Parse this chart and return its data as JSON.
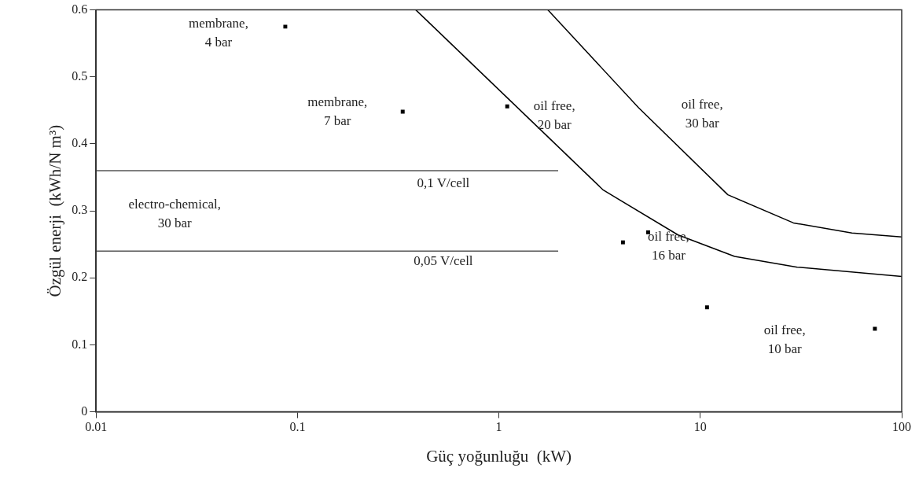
{
  "chart_data": {
    "type": "scatter",
    "xlabel": "Güç yoğunluğu  (kW)",
    "ylabel": "Özgül enerji  (kWh/N m³)",
    "log": "x",
    "xlim": [
      0.01,
      100
    ],
    "xticks": [
      0.01,
      0.1,
      1,
      10,
      100
    ],
    "ylim": [
      0,
      0.6
    ],
    "yticks": [
      0,
      0.1,
      0.2,
      0.3,
      0.4,
      0.5,
      0.6
    ],
    "grid": false,
    "legend": false,
    "series": [
      {
        "type": "scatter",
        "marker": "square",
        "color": "#000000",
        "x": [
          0.087,
          0.333,
          1.1,
          4.13,
          5.51,
          10.8,
          73.6
        ],
        "values": [
          0.575,
          0.448,
          0.456,
          0.253,
          0.268,
          0.156,
          0.124
        ]
      },
      {
        "type": "line",
        "marker": "none",
        "line_style": "solid",
        "color": "#000000",
        "x": [
          0.387,
          3.3,
          7.76,
          14.8,
          30.3,
          100
        ],
        "values": [
          0.6,
          0.331,
          0.264,
          0.232,
          0.216,
          0.202
        ]
      },
      {
        "type": "line",
        "marker": "none",
        "line_style": "solid",
        "color": "#000000",
        "x": [
          1.75,
          4.94,
          13.7,
          29,
          56.6,
          100
        ],
        "values": [
          0.6,
          0.454,
          0.324,
          0.282,
          0.267,
          0.261
        ]
      },
      {
        "type": "line",
        "marker": "none",
        "line_style": "solid",
        "color": "#555555",
        "x": [
          0.01,
          1.97
        ],
        "values": [
          0.36,
          0.36
        ]
      },
      {
        "type": "line",
        "marker": "none",
        "line_style": "solid",
        "color": "#555555",
        "x": [
          0.01,
          1.97
        ],
        "values": [
          0.24,
          0.24
        ]
      }
    ],
    "annotations": [
      {
        "text": "membrane,\n4 bar",
        "x": 0.087,
        "y": 0.575
      },
      {
        "text": "membrane,\n7 bar",
        "x": 0.333,
        "y": 0.448
      },
      {
        "text": "oil free,\n20 bar",
        "x": 1.1,
        "y": 0.456
      },
      "oil free,\n30 bar",
      {
        "text": "0,1 V/cell",
        "x": 0.53,
        "y": 0.36
      },
      "electro-chemical,\n30 bar",
      {
        "text": "0,05 V/cell",
        "x": 0.53,
        "y": 0.24
      },
      {
        "text": "oil free,\n16 bar",
        "x": 4.13,
        "y": 0.253
      },
      "oil free,\n10 bar"
    ]
  }
}
